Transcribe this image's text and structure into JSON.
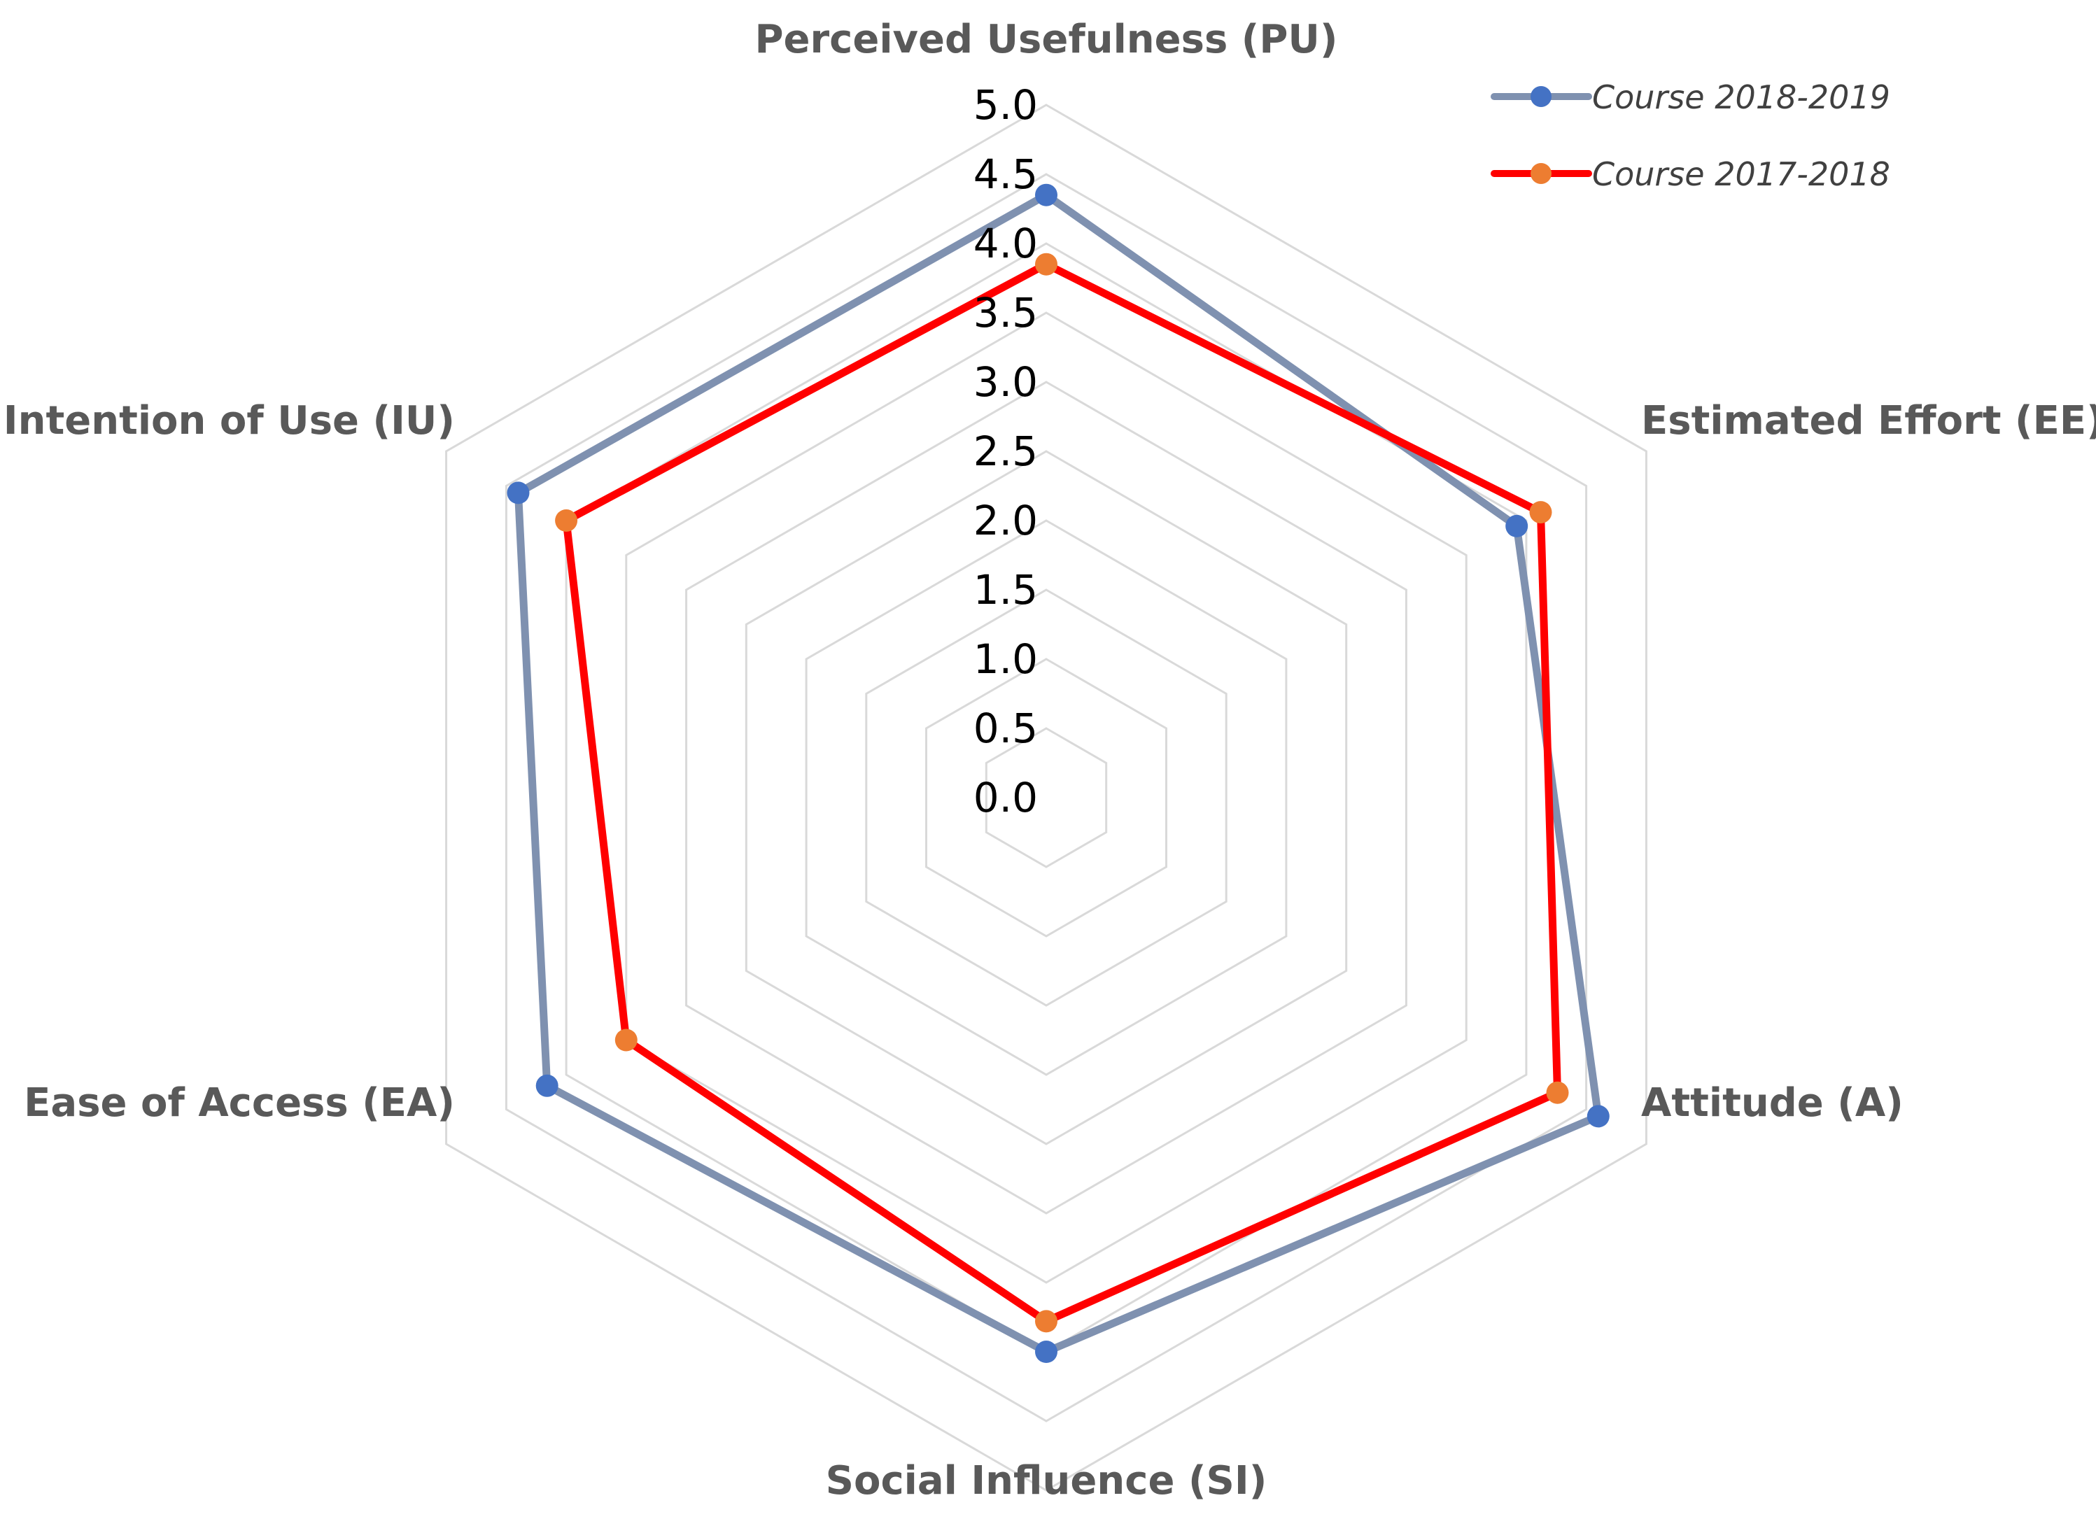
{
  "chart_data": {
    "type": "radar",
    "title": "",
    "axes": [
      "Perceived Usefulness (PU)",
      "Estimated Effort (EE)",
      "Attitude (A)",
      "Social Influence (SI)",
      "Ease of Access (EA)",
      "Intention of Use (IU)"
    ],
    "range": [
      0,
      5
    ],
    "ticks": [
      "0.0",
      "0.5",
      "1.0",
      "1.5",
      "2.0",
      "2.5",
      "3.0",
      "3.5",
      "4.0",
      "4.5",
      "5.0"
    ],
    "series": [
      {
        "name": "Course 2018-2019",
        "values": [
          4.35,
          3.92,
          4.6,
          4.0,
          4.16,
          4.4
        ],
        "line_color": "#7f91b0",
        "marker_color": "#4472c4"
      },
      {
        "name": "Course 2017-2018",
        "values": [
          3.85,
          4.12,
          4.26,
          3.78,
          3.5,
          4.0
        ],
        "line_color": "#ff0000",
        "marker_color": "#ed7d31"
      }
    ],
    "grid": true,
    "legend": "top-right"
  }
}
